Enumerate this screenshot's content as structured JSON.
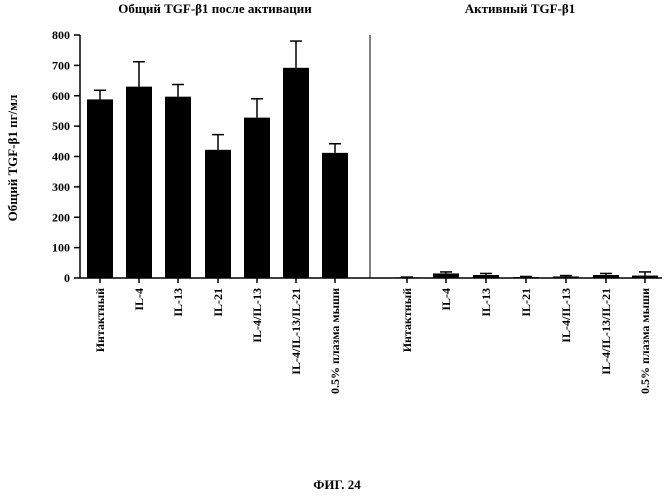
{
  "figure_caption": "ФИГ. 24",
  "ylabel": "Общий TGF-β1 пг/мл",
  "chart_data": [
    {
      "type": "bar",
      "title": "Общий TGF-β1 после активации",
      "ylabel": "Общий TGF-β1 пг/мл",
      "ylim": [
        0,
        800
      ],
      "yticks": [
        0,
        100,
        200,
        300,
        400,
        500,
        600,
        700,
        800
      ],
      "categories": [
        "Интактный",
        "IL-4",
        "IL-13",
        "IL-21",
        "IL-4/IL-13",
        "IL-4/IL-13/IL-21",
        "0.5% плазма мыши"
      ],
      "values": [
        588,
        630,
        597,
        422,
        528,
        692,
        412
      ],
      "errors": [
        30,
        82,
        40,
        50,
        62,
        88,
        30
      ]
    },
    {
      "type": "bar",
      "title": "Активный TGF-β1",
      "ylim": [
        0,
        800
      ],
      "categories": [
        "Интактный",
        "IL-4",
        "IL-13",
        "IL-21",
        "IL-4/IL-13",
        "IL-4/IL-13/IL-21",
        "0.5% плазма мыши"
      ],
      "values": [
        2,
        15,
        10,
        3,
        5,
        10,
        8
      ],
      "errors": [
        1,
        5,
        5,
        2,
        3,
        5,
        12
      ]
    }
  ],
  "colors": {
    "bar": "#000000",
    "axis": "#000000"
  }
}
